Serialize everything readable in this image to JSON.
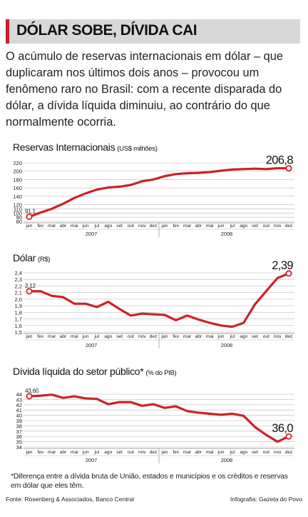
{
  "headline": "DÓLAR SOBE, DÍVIDA CAI",
  "lede": "O acúmulo de reservas internacionais em dólar – que duplicaram nos últimos dois anos – provocou um fenômeno raro no Brasil: com a recente disparada do dólar, a dívida líquida diminuiu, ao contrário do que normalmente ocorria.",
  "footnote": "*Diferença entre a dívida bruta de União, estados e municípios e os créditos e reservas em dólar que eles têm.",
  "source": "Fonte: Rosenberg & Associados, Banco Central",
  "infographic": "Infografia: Gazeta do Povo",
  "colors": {
    "line": "#cc2229",
    "accent_bar": "#cc1f27",
    "headline_bg": "#d8d8d8",
    "grid": "#bdbdbd",
    "marker_fill": "#ffffff"
  },
  "chart_data": [
    {
      "type": "line",
      "title": "Reservas Internacionais",
      "unit": "(US$ milhões)",
      "x": [
        "jan",
        "fev",
        "mar",
        "abr",
        "mai",
        "jun",
        "jul",
        "ago",
        "set",
        "out",
        "nov",
        "dez",
        "jan",
        "fev",
        "mar",
        "abr",
        "mai",
        "jun",
        "jul",
        "ago",
        "set",
        "out",
        "nov",
        "dez"
      ],
      "years": [
        "2007",
        "2008"
      ],
      "values": [
        91.1,
        101,
        110,
        122,
        136,
        147,
        156,
        161,
        163,
        167,
        176,
        180,
        188,
        193,
        195,
        196,
        198,
        201,
        204,
        205,
        206,
        205,
        207,
        206.8
      ],
      "yticks": [
        80,
        90,
        100,
        110,
        120,
        140,
        160,
        180,
        200,
        220
      ],
      "ylim": [
        80,
        220
      ],
      "start_label": "91,1",
      "end_label": "206,8",
      "grid": true
    },
    {
      "type": "line",
      "title": "Dólar",
      "unit": "(R$)",
      "x": [
        "jan",
        "fev",
        "mar",
        "abr",
        "mai",
        "jun",
        "jul",
        "ago",
        "set",
        "out",
        "nov",
        "dez",
        "jan",
        "fev",
        "mar",
        "abr",
        "mai",
        "jun",
        "jul",
        "ago",
        "set",
        "out",
        "nov",
        "dez"
      ],
      "years": [
        "2007",
        "2008"
      ],
      "values": [
        2.12,
        2.12,
        2.05,
        2.03,
        1.93,
        1.93,
        1.88,
        1.96,
        1.85,
        1.75,
        1.78,
        1.77,
        1.76,
        1.68,
        1.75,
        1.69,
        1.64,
        1.6,
        1.58,
        1.64,
        1.92,
        2.12,
        2.32,
        2.39
      ],
      "yticks": [
        1.5,
        1.6,
        1.7,
        1.8,
        1.9,
        2.0,
        2.1,
        2.2,
        2.3,
        2.4
      ],
      "ytick_labels": [
        "1,5",
        "1,6",
        "1,7",
        "1,8",
        "1,9",
        "2,0",
        "2,1",
        "2,2",
        "2,3",
        "2,4"
      ],
      "ylim": [
        1.5,
        2.4
      ],
      "start_label": "2,12",
      "end_label": "2,39",
      "grid": true
    },
    {
      "type": "line",
      "title": "Dívida líquida do setor público*",
      "unit": "(% do PIB)",
      "x": [
        "jan",
        "fev",
        "mar",
        "abr",
        "mai",
        "jun",
        "jul",
        "ago",
        "set",
        "out",
        "nov",
        "dez",
        "jan",
        "fev",
        "mar",
        "abr",
        "mai",
        "jun",
        "jul",
        "ago",
        "set",
        "out",
        "nov",
        "dez"
      ],
      "years": [
        "2007",
        "2008"
      ],
      "values": [
        43.6,
        43.7,
        43.9,
        43.3,
        43.6,
        43.2,
        43.1,
        42.1,
        42.5,
        42.5,
        41.8,
        42.1,
        41.4,
        41.7,
        40.8,
        40.5,
        40.3,
        40.1,
        40.3,
        39.9,
        37.8,
        36.3,
        35.0,
        36.0
      ],
      "yticks": [
        34,
        35,
        36,
        37,
        38,
        39,
        40,
        41,
        42,
        43,
        44
      ],
      "ylim": [
        34,
        44
      ],
      "start_label": "43,60",
      "end_label": "36,0",
      "grid": true
    }
  ]
}
